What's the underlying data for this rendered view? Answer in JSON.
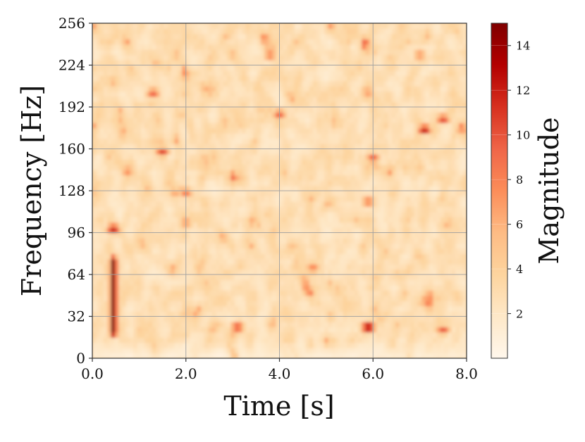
{
  "chart_data": {
    "type": "heatmap",
    "title": "",
    "xlabel": "Time [s]",
    "ylabel": "Frequency [Hz]",
    "colorbar_label": "Magnitude",
    "xlim": [
      0,
      8
    ],
    "ylim": [
      0,
      256
    ],
    "xticks": [
      0,
      2,
      4,
      6,
      8
    ],
    "xtick_labels": [
      "0.0",
      "2.0",
      "4.0",
      "6.0",
      "8.0"
    ],
    "yticks": [
      0,
      32,
      64,
      96,
      128,
      160,
      192,
      224,
      256
    ],
    "ytick_labels": [
      "0",
      "32",
      "64",
      "96",
      "128",
      "160",
      "192",
      "224",
      "256"
    ],
    "color_range": [
      0,
      15
    ],
    "colorbar_ticks": [
      2,
      4,
      6,
      8,
      10,
      12,
      14
    ],
    "colorbar_tick_labels": [
      "2",
      "4",
      "6",
      "8",
      "10",
      "12",
      "14"
    ],
    "colormap": "OrRd",
    "colormap_stops": [
      "#fff7ec",
      "#fee8c8",
      "#fdd49e",
      "#fdbb84",
      "#fc8d59",
      "#ef6548",
      "#d7301f",
      "#b30000",
      "#7f0000"
    ],
    "grid": true,
    "background_level": 3,
    "hotspots": [
      {
        "t": 0.45,
        "f": 20,
        "f_end": 75,
        "magnitude": 15
      },
      {
        "t": 0.45,
        "f": 99,
        "magnitude": 13
      },
      {
        "t": 5.9,
        "f": 24,
        "magnitude": 15
      },
      {
        "t": 3.1,
        "f": 24,
        "magnitude": 11
      },
      {
        "t": 7.1,
        "f": 175,
        "magnitude": 13
      },
      {
        "t": 7.5,
        "f": 183,
        "magnitude": 11
      },
      {
        "t": 1.5,
        "f": 158,
        "magnitude": 11
      },
      {
        "t": 1.3,
        "f": 203,
        "magnitude": 10
      },
      {
        "t": 6.0,
        "f": 153,
        "magnitude": 10
      },
      {
        "t": 7.0,
        "f": 232,
        "magnitude": 8
      },
      {
        "t": 7.5,
        "f": 22,
        "magnitude": 10
      },
      {
        "t": 4.0,
        "f": 187,
        "magnitude": 10
      },
      {
        "t": 3.8,
        "f": 232,
        "magnitude": 9
      },
      {
        "t": 5.9,
        "f": 120,
        "magnitude": 9
      },
      {
        "t": 2.0,
        "f": 127,
        "magnitude": 9
      },
      {
        "t": 2.0,
        "f": 104,
        "magnitude": 8
      }
    ]
  }
}
